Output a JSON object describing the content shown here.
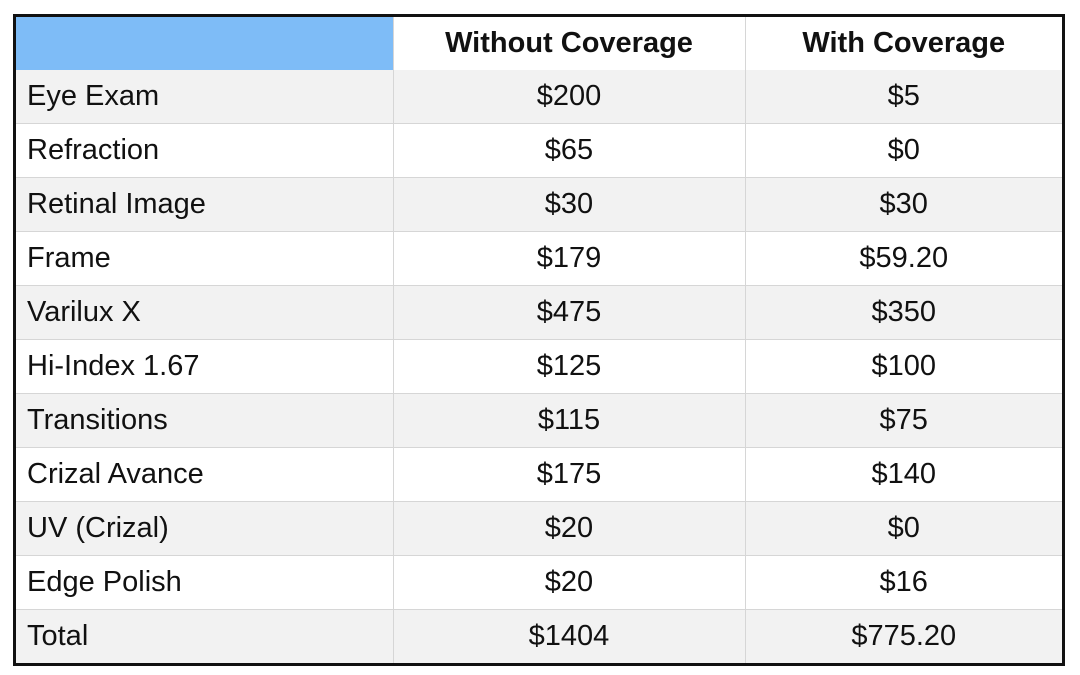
{
  "table": {
    "header": {
      "corner": "",
      "without": "Without Coverage",
      "with": "With Coverage"
    },
    "rows": [
      {
        "item": "Eye Exam",
        "without": "$200",
        "with": "$5"
      },
      {
        "item": "Refraction",
        "without": "$65",
        "with": "$0"
      },
      {
        "item": "Retinal Image",
        "without": "$30",
        "with": "$30"
      },
      {
        "item": "Frame",
        "without": "$179",
        "with": "$59.20"
      },
      {
        "item": "Varilux X",
        "without": "$475",
        "with": "$350"
      },
      {
        "item": "Hi-Index 1.67",
        "without": "$125",
        "with": "$100"
      },
      {
        "item": "Transitions",
        "without": "$115",
        "with": "$75"
      },
      {
        "item": "Crizal Avance",
        "without": "$175",
        "with": "$140"
      },
      {
        "item": "UV (Crizal)",
        "without": "$20",
        "with": "$0"
      },
      {
        "item": "Edge Polish",
        "without": "$20",
        "with": "$16"
      },
      {
        "item": "Total",
        "without": "$1404",
        "with": "$775.20"
      }
    ],
    "colors": {
      "corner_fill": "#7ebcf7",
      "stripe_fill": "#f2f2f2",
      "border": "#111111"
    }
  }
}
